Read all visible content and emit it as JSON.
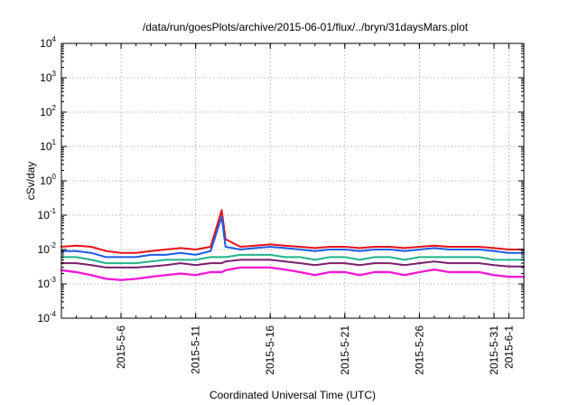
{
  "chart_data": {
    "type": "line",
    "title": "/data/run/goesPlots/archive/2015-06-01/flux/../bryn/31daysMars.plot",
    "xlabel": "Coordinated Universal Time (UTC)",
    "ylabel": "cSv/day",
    "yscale": "log",
    "ylim": [
      0.0001,
      10000
    ],
    "y_ticks": [
      {
        "base": "10",
        "exp": "-4"
      },
      {
        "base": "10",
        "exp": "-3"
      },
      {
        "base": "10",
        "exp": "-2"
      },
      {
        "base": "10",
        "exp": "-1"
      },
      {
        "base": "10",
        "exp": "0"
      },
      {
        "base": "10",
        "exp": "1"
      },
      {
        "base": "10",
        "exp": "2"
      },
      {
        "base": "10",
        "exp": "3"
      },
      {
        "base": "10",
        "exp": "4"
      }
    ],
    "x_range_days": [
      "2015-05-02",
      "2015-06-02"
    ],
    "x_ticks": [
      "2015-5-6",
      "2015-5-11",
      "2015-5-16",
      "2015-5-21",
      "2015-5-26",
      "2015-5-31",
      "2015-6-1"
    ],
    "x_tick_dates": [
      "2015-05-06",
      "2015-05-11",
      "2015-05-16",
      "2015-05-21",
      "2015-05-26",
      "2015-05-31",
      "2015-06-01"
    ],
    "grid": true,
    "legend": "none",
    "series_style": [
      {
        "color": "#e8101a"
      },
      {
        "color": "#1c5ce6"
      },
      {
        "color": "#20b48c"
      },
      {
        "color": "#7a1f6e"
      },
      {
        "color": "#f21bd6"
      }
    ],
    "x": [
      "2015-05-02",
      "2015-05-03",
      "2015-05-04",
      "2015-05-05",
      "2015-05-06",
      "2015-05-07",
      "2015-05-08",
      "2015-05-09",
      "2015-05-10",
      "2015-05-11",
      "2015-05-12",
      "2015-05-12T18:00",
      "2015-05-13",
      "2015-05-14",
      "2015-05-15",
      "2015-05-16",
      "2015-05-17",
      "2015-05-18",
      "2015-05-19",
      "2015-05-20",
      "2015-05-21",
      "2015-05-22",
      "2015-05-23",
      "2015-05-24",
      "2015-05-25",
      "2015-05-26",
      "2015-05-27",
      "2015-05-28",
      "2015-05-29",
      "2015-05-30",
      "2015-05-31",
      "2015-06-01",
      "2015-06-02"
    ],
    "series": [
      {
        "values": [
          0.012,
          0.013,
          0.012,
          0.009,
          0.008,
          0.008,
          0.009,
          0.01,
          0.011,
          0.01,
          0.012,
          0.14,
          0.02,
          0.012,
          0.013,
          0.014,
          0.013,
          0.012,
          0.011,
          0.012,
          0.012,
          0.011,
          0.012,
          0.012,
          0.011,
          0.012,
          0.013,
          0.012,
          0.012,
          0.012,
          0.011,
          0.01,
          0.01
        ]
      },
      {
        "values": [
          0.009,
          0.009,
          0.008,
          0.006,
          0.006,
          0.006,
          0.007,
          0.007,
          0.008,
          0.007,
          0.009,
          0.09,
          0.012,
          0.01,
          0.011,
          0.012,
          0.011,
          0.01,
          0.009,
          0.01,
          0.01,
          0.009,
          0.01,
          0.01,
          0.009,
          0.01,
          0.011,
          0.01,
          0.01,
          0.01,
          0.009,
          0.008,
          0.008
        ]
      },
      {
        "values": [
          0.006,
          0.006,
          0.005,
          0.004,
          0.004,
          0.004,
          0.0045,
          0.005,
          0.005,
          0.005,
          0.006,
          0.006,
          0.006,
          0.007,
          0.007,
          0.007,
          0.006,
          0.006,
          0.005,
          0.006,
          0.006,
          0.005,
          0.006,
          0.006,
          0.005,
          0.006,
          0.006,
          0.006,
          0.006,
          0.006,
          0.005,
          0.005,
          0.005
        ]
      },
      {
        "values": [
          0.004,
          0.004,
          0.0035,
          0.003,
          0.003,
          0.003,
          0.0032,
          0.0035,
          0.004,
          0.0035,
          0.004,
          0.004,
          0.0045,
          0.005,
          0.005,
          0.005,
          0.0045,
          0.004,
          0.0035,
          0.004,
          0.004,
          0.0035,
          0.004,
          0.004,
          0.0035,
          0.004,
          0.0045,
          0.004,
          0.004,
          0.004,
          0.0035,
          0.0032,
          0.0032
        ]
      },
      {
        "values": [
          0.0025,
          0.0022,
          0.0018,
          0.0014,
          0.0013,
          0.0014,
          0.0016,
          0.0018,
          0.002,
          0.0018,
          0.0022,
          0.0022,
          0.0025,
          0.003,
          0.003,
          0.003,
          0.0026,
          0.0022,
          0.0018,
          0.0022,
          0.0022,
          0.0018,
          0.0022,
          0.0022,
          0.0018,
          0.0022,
          0.0026,
          0.0022,
          0.0022,
          0.0022,
          0.0018,
          0.0016,
          0.0016
        ]
      }
    ]
  }
}
